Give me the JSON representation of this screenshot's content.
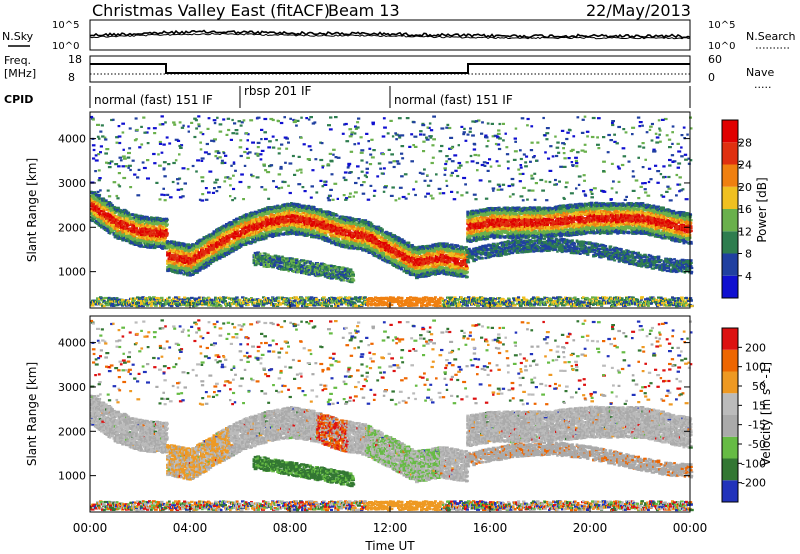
{
  "header": {
    "title": "Christmas Valley East (fitACF)",
    "beam": "Beam 13",
    "date": "22/May/2013"
  },
  "noise_panel": {
    "left_label": "N.Sky",
    "right_label": "N.Search",
    "left_ticks": [
      "10^5",
      "10^0"
    ],
    "right_ticks": [
      "10^5",
      "10^0"
    ]
  },
  "freq_panel": {
    "left_label_1": "Freq.",
    "left_label_2": "[MHz]",
    "left_ticks": [
      "18",
      "8"
    ],
    "right_ticks": [
      "60",
      "0"
    ],
    "right_label": "Nave",
    "right_label_dots": "....."
  },
  "cpid": {
    "label": "CPID",
    "segments": [
      {
        "name": "normal (fast) 151 IF",
        "start": 0,
        "end": 6
      },
      {
        "name": "rbsp 201 IF",
        "start": 6,
        "end": 12
      },
      {
        "name": "normal (fast) 151 IF",
        "start": 12,
        "end": 24
      }
    ]
  },
  "colors": {
    "power": [
      "#1010d0",
      "#2040a0",
      "#2e7d4f",
      "#6ab04c",
      "#f0c020",
      "#f08010",
      "#e03010",
      "#e00000"
    ],
    "velocity": [
      "#2233bb",
      "#337733",
      "#66bb44",
      "#aaaaaa",
      "#bbbbbb",
      "#ee9922",
      "#ee6600",
      "#dd1111"
    ]
  },
  "chart_data": [
    {
      "type": "heatmap",
      "title": "Christmas Valley East (fitACF) Beam 13 22/May/2013",
      "ylabel": "Slant Range [km]",
      "xlim": [
        0,
        24
      ],
      "ylim": [
        180,
        4600
      ],
      "yticks": [
        "1000",
        "2000",
        "3000",
        "4000"
      ],
      "colorbar": {
        "label": "Power [dB]",
        "ticks": [
          "28",
          "24",
          "20",
          "16",
          "12",
          "8",
          "4"
        ]
      },
      "echo_band": {
        "time_h": [
          0,
          1,
          2,
          3,
          3.05,
          4,
          5,
          6,
          7,
          8,
          9,
          10,
          11,
          12,
          13,
          14,
          15,
          15.05,
          16,
          18,
          20,
          22,
          24
        ],
        "range_km": [
          2500,
          2100,
          1900,
          1850,
          1350,
          1250,
          1600,
          1900,
          2100,
          2200,
          2100,
          1900,
          1800,
          1500,
          1200,
          1300,
          1200,
          2000,
          2100,
          2100,
          2200,
          2200,
          1950
        ]
      }
    },
    {
      "type": "heatmap",
      "xlabel": "Time UT",
      "ylabel": "Slant Range [km]",
      "xlim": [
        0,
        24
      ],
      "ylim": [
        180,
        4600
      ],
      "yticks": [
        "1000",
        "2000",
        "3000",
        "4000"
      ],
      "xticks": [
        "00:00",
        "04:00",
        "08:00",
        "12:00",
        "16:00",
        "20:00",
        "00:00"
      ],
      "colorbar": {
        "label": "Velocity [m s^-1]",
        "ticks": [
          "200",
          "100",
          "50",
          "15",
          "-15",
          "-50",
          "-100",
          "-200"
        ]
      }
    }
  ]
}
